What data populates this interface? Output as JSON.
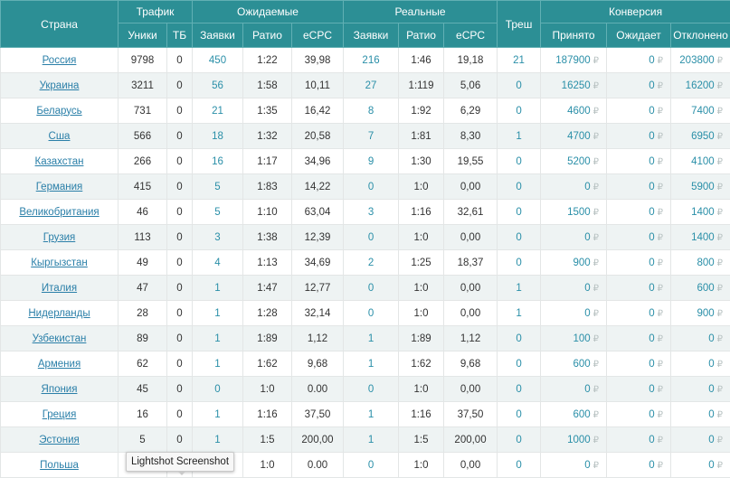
{
  "header": {
    "country": "Страна",
    "traffic": "Трафик",
    "expected": "Ожидаемые",
    "real": "Реальные",
    "trash": "Треш",
    "conversion": "Конверсия",
    "sub": {
      "uniques": "Уники",
      "tb": "ТБ",
      "exp_leads": "Заявки",
      "exp_ratio": "Ратио",
      "exp_ecpc": "eCPC",
      "real_leads": "Заявки",
      "real_ratio": "Ратио",
      "real_ecpc": "eCPC",
      "accepted": "Принято",
      "pending": "Ожидает",
      "rejected": "Отклонено"
    }
  },
  "currency_symbol": "₽",
  "rows": [
    {
      "country": "Россия",
      "uniques": "9798",
      "tb": "0",
      "exp_leads": "450",
      "exp_ratio": "1:22",
      "exp_ecpc": "39,98",
      "real_leads": "216",
      "real_ratio": "1:46",
      "real_ecpc": "19,18",
      "trash": "21",
      "accepted": "187900",
      "pending": "0",
      "rejected": "203800"
    },
    {
      "country": "Украина",
      "uniques": "3211",
      "tb": "0",
      "exp_leads": "56",
      "exp_ratio": "1:58",
      "exp_ecpc": "10,11",
      "real_leads": "27",
      "real_ratio": "1:119",
      "real_ecpc": "5,06",
      "trash": "0",
      "accepted": "16250",
      "pending": "0",
      "rejected": "16200"
    },
    {
      "country": "Беларусь",
      "uniques": "731",
      "tb": "0",
      "exp_leads": "21",
      "exp_ratio": "1:35",
      "exp_ecpc": "16,42",
      "real_leads": "8",
      "real_ratio": "1:92",
      "real_ecpc": "6,29",
      "trash": "0",
      "accepted": "4600",
      "pending": "0",
      "rejected": "7400"
    },
    {
      "country": "Сша",
      "uniques": "566",
      "tb": "0",
      "exp_leads": "18",
      "exp_ratio": "1:32",
      "exp_ecpc": "20,58",
      "real_leads": "7",
      "real_ratio": "1:81",
      "real_ecpc": "8,30",
      "trash": "1",
      "accepted": "4700",
      "pending": "0",
      "rejected": "6950"
    },
    {
      "country": "Казахстан",
      "uniques": "266",
      "tb": "0",
      "exp_leads": "16",
      "exp_ratio": "1:17",
      "exp_ecpc": "34,96",
      "real_leads": "9",
      "real_ratio": "1:30",
      "real_ecpc": "19,55",
      "trash": "0",
      "accepted": "5200",
      "pending": "0",
      "rejected": "4100"
    },
    {
      "country": "Германия",
      "uniques": "415",
      "tb": "0",
      "exp_leads": "5",
      "exp_ratio": "1:83",
      "exp_ecpc": "14,22",
      "real_leads": "0",
      "real_ratio": "1:0",
      "real_ecpc": "0,00",
      "trash": "0",
      "accepted": "0",
      "pending": "0",
      "rejected": "5900"
    },
    {
      "country": "Великобритания",
      "uniques": "46",
      "tb": "0",
      "exp_leads": "5",
      "exp_ratio": "1:10",
      "exp_ecpc": "63,04",
      "real_leads": "3",
      "real_ratio": "1:16",
      "real_ecpc": "32,61",
      "trash": "0",
      "accepted": "1500",
      "pending": "0",
      "rejected": "1400"
    },
    {
      "country": "Грузия",
      "uniques": "113",
      "tb": "0",
      "exp_leads": "3",
      "exp_ratio": "1:38",
      "exp_ecpc": "12,39",
      "real_leads": "0",
      "real_ratio": "1:0",
      "real_ecpc": "0,00",
      "trash": "0",
      "accepted": "0",
      "pending": "0",
      "rejected": "1400"
    },
    {
      "country": "Кыргызстан",
      "uniques": "49",
      "tb": "0",
      "exp_leads": "4",
      "exp_ratio": "1:13",
      "exp_ecpc": "34,69",
      "real_leads": "2",
      "real_ratio": "1:25",
      "real_ecpc": "18,37",
      "trash": "0",
      "accepted": "900",
      "pending": "0",
      "rejected": "800"
    },
    {
      "country": "Италия",
      "uniques": "47",
      "tb": "0",
      "exp_leads": "1",
      "exp_ratio": "1:47",
      "exp_ecpc": "12,77",
      "real_leads": "0",
      "real_ratio": "1:0",
      "real_ecpc": "0,00",
      "trash": "1",
      "accepted": "0",
      "pending": "0",
      "rejected": "600"
    },
    {
      "country": "Нидерланды",
      "uniques": "28",
      "tb": "0",
      "exp_leads": "1",
      "exp_ratio": "1:28",
      "exp_ecpc": "32,14",
      "real_leads": "0",
      "real_ratio": "1:0",
      "real_ecpc": "0,00",
      "trash": "1",
      "accepted": "0",
      "pending": "0",
      "rejected": "900"
    },
    {
      "country": "Узбекистан",
      "uniques": "89",
      "tb": "0",
      "exp_leads": "1",
      "exp_ratio": "1:89",
      "exp_ecpc": "1,12",
      "real_leads": "1",
      "real_ratio": "1:89",
      "real_ecpc": "1,12",
      "trash": "0",
      "accepted": "100",
      "pending": "0",
      "rejected": "0"
    },
    {
      "country": "Армения",
      "uniques": "62",
      "tb": "0",
      "exp_leads": "1",
      "exp_ratio": "1:62",
      "exp_ecpc": "9,68",
      "real_leads": "1",
      "real_ratio": "1:62",
      "real_ecpc": "9,68",
      "trash": "0",
      "accepted": "600",
      "pending": "0",
      "rejected": "0"
    },
    {
      "country": "Япония",
      "uniques": "45",
      "tb": "0",
      "exp_leads": "0",
      "exp_ratio": "1:0",
      "exp_ecpc": "0.00",
      "real_leads": "0",
      "real_ratio": "1:0",
      "real_ecpc": "0,00",
      "trash": "0",
      "accepted": "0",
      "pending": "0",
      "rejected": "0"
    },
    {
      "country": "Греция",
      "uniques": "16",
      "tb": "0",
      "exp_leads": "1",
      "exp_ratio": "1:16",
      "exp_ecpc": "37,50",
      "real_leads": "1",
      "real_ratio": "1:16",
      "real_ecpc": "37,50",
      "trash": "0",
      "accepted": "600",
      "pending": "0",
      "rejected": "0"
    },
    {
      "country": "Эстония",
      "uniques": "5",
      "tb": "0",
      "exp_leads": "1",
      "exp_ratio": "1:5",
      "exp_ecpc": "200,00",
      "real_leads": "1",
      "real_ratio": "1:5",
      "real_ecpc": "200,00",
      "trash": "0",
      "accepted": "1000",
      "pending": "0",
      "rejected": "0"
    },
    {
      "country": "Польша",
      "uniques": "",
      "tb": "",
      "exp_leads": "0",
      "exp_ratio": "1:0",
      "exp_ecpc": "0.00",
      "real_leads": "0",
      "real_ratio": "1:0",
      "real_ecpc": "0,00",
      "trash": "0",
      "accepted": "0",
      "pending": "0",
      "rejected": "0"
    }
  ],
  "tooltip": {
    "text": "Lightshot Screenshot"
  }
}
